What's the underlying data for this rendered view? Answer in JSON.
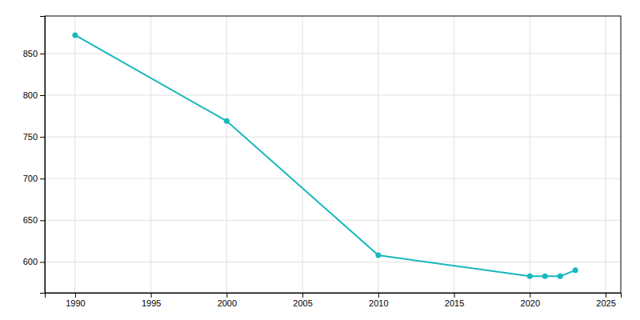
{
  "chart_data": {
    "type": "line",
    "x": [
      1990,
      2000,
      2010,
      2020,
      2021,
      2022,
      2023
    ],
    "values": [
      872,
      769,
      608,
      583,
      583,
      583,
      590
    ],
    "color": "#17b8be",
    "marker": "circle",
    "xlim": [
      1988,
      2026
    ],
    "ylim": [
      563,
      895
    ],
    "xticks": [
      1990,
      1995,
      2000,
      2005,
      2010,
      2015,
      2020,
      2025
    ],
    "yticks": [
      600,
      650,
      700,
      750,
      800,
      850
    ],
    "grid": true
  }
}
